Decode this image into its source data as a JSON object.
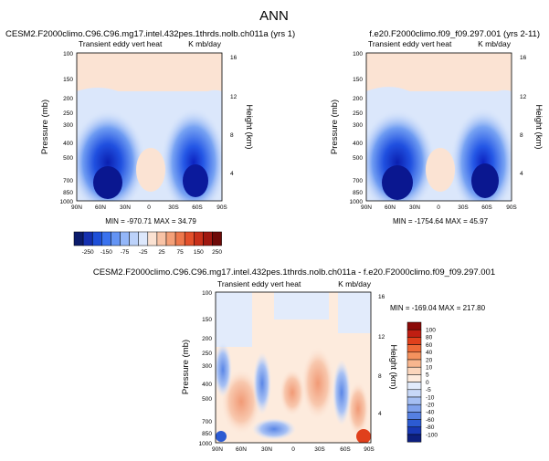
{
  "page_title": "ANN",
  "chart_data": [
    {
      "type": "heatmap",
      "case_title": "CESM2.F2000climo.C96.C96.mg17.intel.432pes.1thrds.nolb.ch011a (yrs 1)",
      "variable": "Transient eddy vert heat",
      "units": "K mb/day",
      "ylabel": "Pressure (mb)",
      "ylabel_right": "Height (km)",
      "x_ticks": [
        "90N",
        "60N",
        "30N",
        "0",
        "30S",
        "60S",
        "90S"
      ],
      "y_ticks": [
        "100",
        "150",
        "200",
        "250",
        "300",
        "400",
        "500",
        "700",
        "850",
        "1000"
      ],
      "y_right_ticks": [
        "16",
        "12",
        "8",
        "4"
      ],
      "stats": "MIN = -970.71   MAX = 34.79"
    },
    {
      "type": "heatmap",
      "case_title": "f.e20.F2000climo.f09_f09.297.001 (yrs 2-11)",
      "variable": "Transient eddy vert heat",
      "units": "K mb/day",
      "ylabel": "Pressure (mb)",
      "ylabel_right": "Height (km)",
      "x_ticks": [
        "90N",
        "60N",
        "30N",
        "0",
        "30S",
        "60S",
        "90S"
      ],
      "y_ticks": [
        "100",
        "150",
        "200",
        "250",
        "300",
        "400",
        "500",
        "700",
        "850",
        "1000"
      ],
      "y_right_ticks": [
        "16",
        "12",
        "8",
        "4"
      ],
      "stats": "MIN = -1754.64   MAX = 45.97"
    },
    {
      "type": "heatmap",
      "case_title": "CESM2.F2000climo.C96.C96.mg17.intel.432pes.1thrds.nolb.ch011a - f.e20.F2000climo.f09_f09.297.001",
      "variable": "Transient eddy vert heat",
      "units": "K mb/day",
      "ylabel": "Pressure (mb)",
      "ylabel_right": "Height (km)",
      "x_ticks": [
        "90N",
        "60N",
        "30N",
        "0",
        "30S",
        "60S",
        "90S"
      ],
      "y_ticks": [
        "100",
        "150",
        "200",
        "250",
        "300",
        "400",
        "500",
        "700",
        "850",
        "1000"
      ],
      "y_right_ticks": [
        "16",
        "12",
        "8",
        "4"
      ],
      "stats": "MIN = -169.04   MAX = 217.80"
    }
  ],
  "shared_colorbar": {
    "labels": [
      "-250",
      "-150",
      "-75",
      "-25",
      "25",
      "75",
      "150",
      "250"
    ],
    "colors": [
      "#0b1b6b",
      "#1530b0",
      "#1e4fd8",
      "#3a72ee",
      "#6494f4",
      "#93b6f8",
      "#bcd2fa",
      "#dde8fc",
      "#fbe2d2",
      "#f8c3a6",
      "#f4a078",
      "#ee784c",
      "#e3502b",
      "#c8301a",
      "#a01810",
      "#6e0a08"
    ]
  },
  "diff_colorbar": {
    "labels": [
      "100",
      "80",
      "60",
      "40",
      "20",
      "10",
      "5",
      "0",
      "-5",
      "-10",
      "-20",
      "-40",
      "-60",
      "-80",
      "-100"
    ],
    "colors": [
      "#8b0a08",
      "#c01e12",
      "#e0401c",
      "#ee6a38",
      "#f4925e",
      "#f8b68e",
      "#fbd6bc",
      "#fdebdd",
      "#e2ebfb",
      "#c7d8f8",
      "#a5bff3",
      "#7fa1ec",
      "#5580e2",
      "#2c5bd2",
      "#1838b4",
      "#0d1f7e"
    ]
  }
}
